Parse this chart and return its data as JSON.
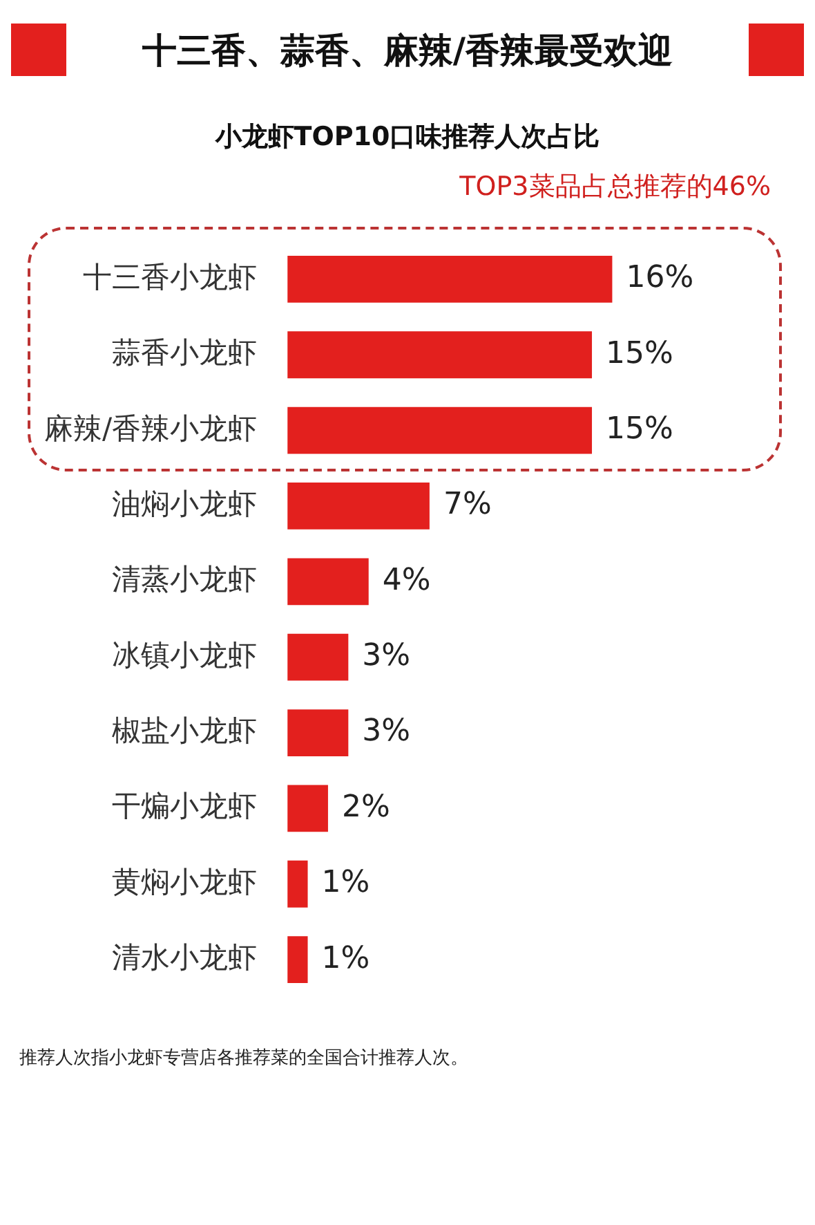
{
  "chart_data": {
    "type": "bar",
    "orientation": "horizontal",
    "title": "十三香、蒜香、麻辣/香辣最受欢迎",
    "subtitle": "小龙虾TOP10口味推荐人次占比",
    "categories": [
      "十三香小龙虾",
      "蒜香小龙虾",
      "麻辣/香辣小龙虾",
      "油焖小龙虾",
      "清蒸小龙虾",
      "冰镇小龙虾",
      "椒盐小龙虾",
      "干煸小龙虾",
      "黄焖小龙虾",
      "清水小龙虾"
    ],
    "values": [
      16,
      15,
      15,
      7,
      4,
      3,
      3,
      2,
      1,
      1
    ],
    "value_labels": [
      "16%",
      "15%",
      "15%",
      "7%",
      "4%",
      "3%",
      "3%",
      "2%",
      "1%",
      "1%"
    ],
    "color": "#e3201e",
    "legend": false,
    "annotations": [
      "TOP3菜品占总推荐的46%",
      "推荐人次指小龙虾专营店各推荐菜的全国合计推荐人次。"
    ]
  }
}
